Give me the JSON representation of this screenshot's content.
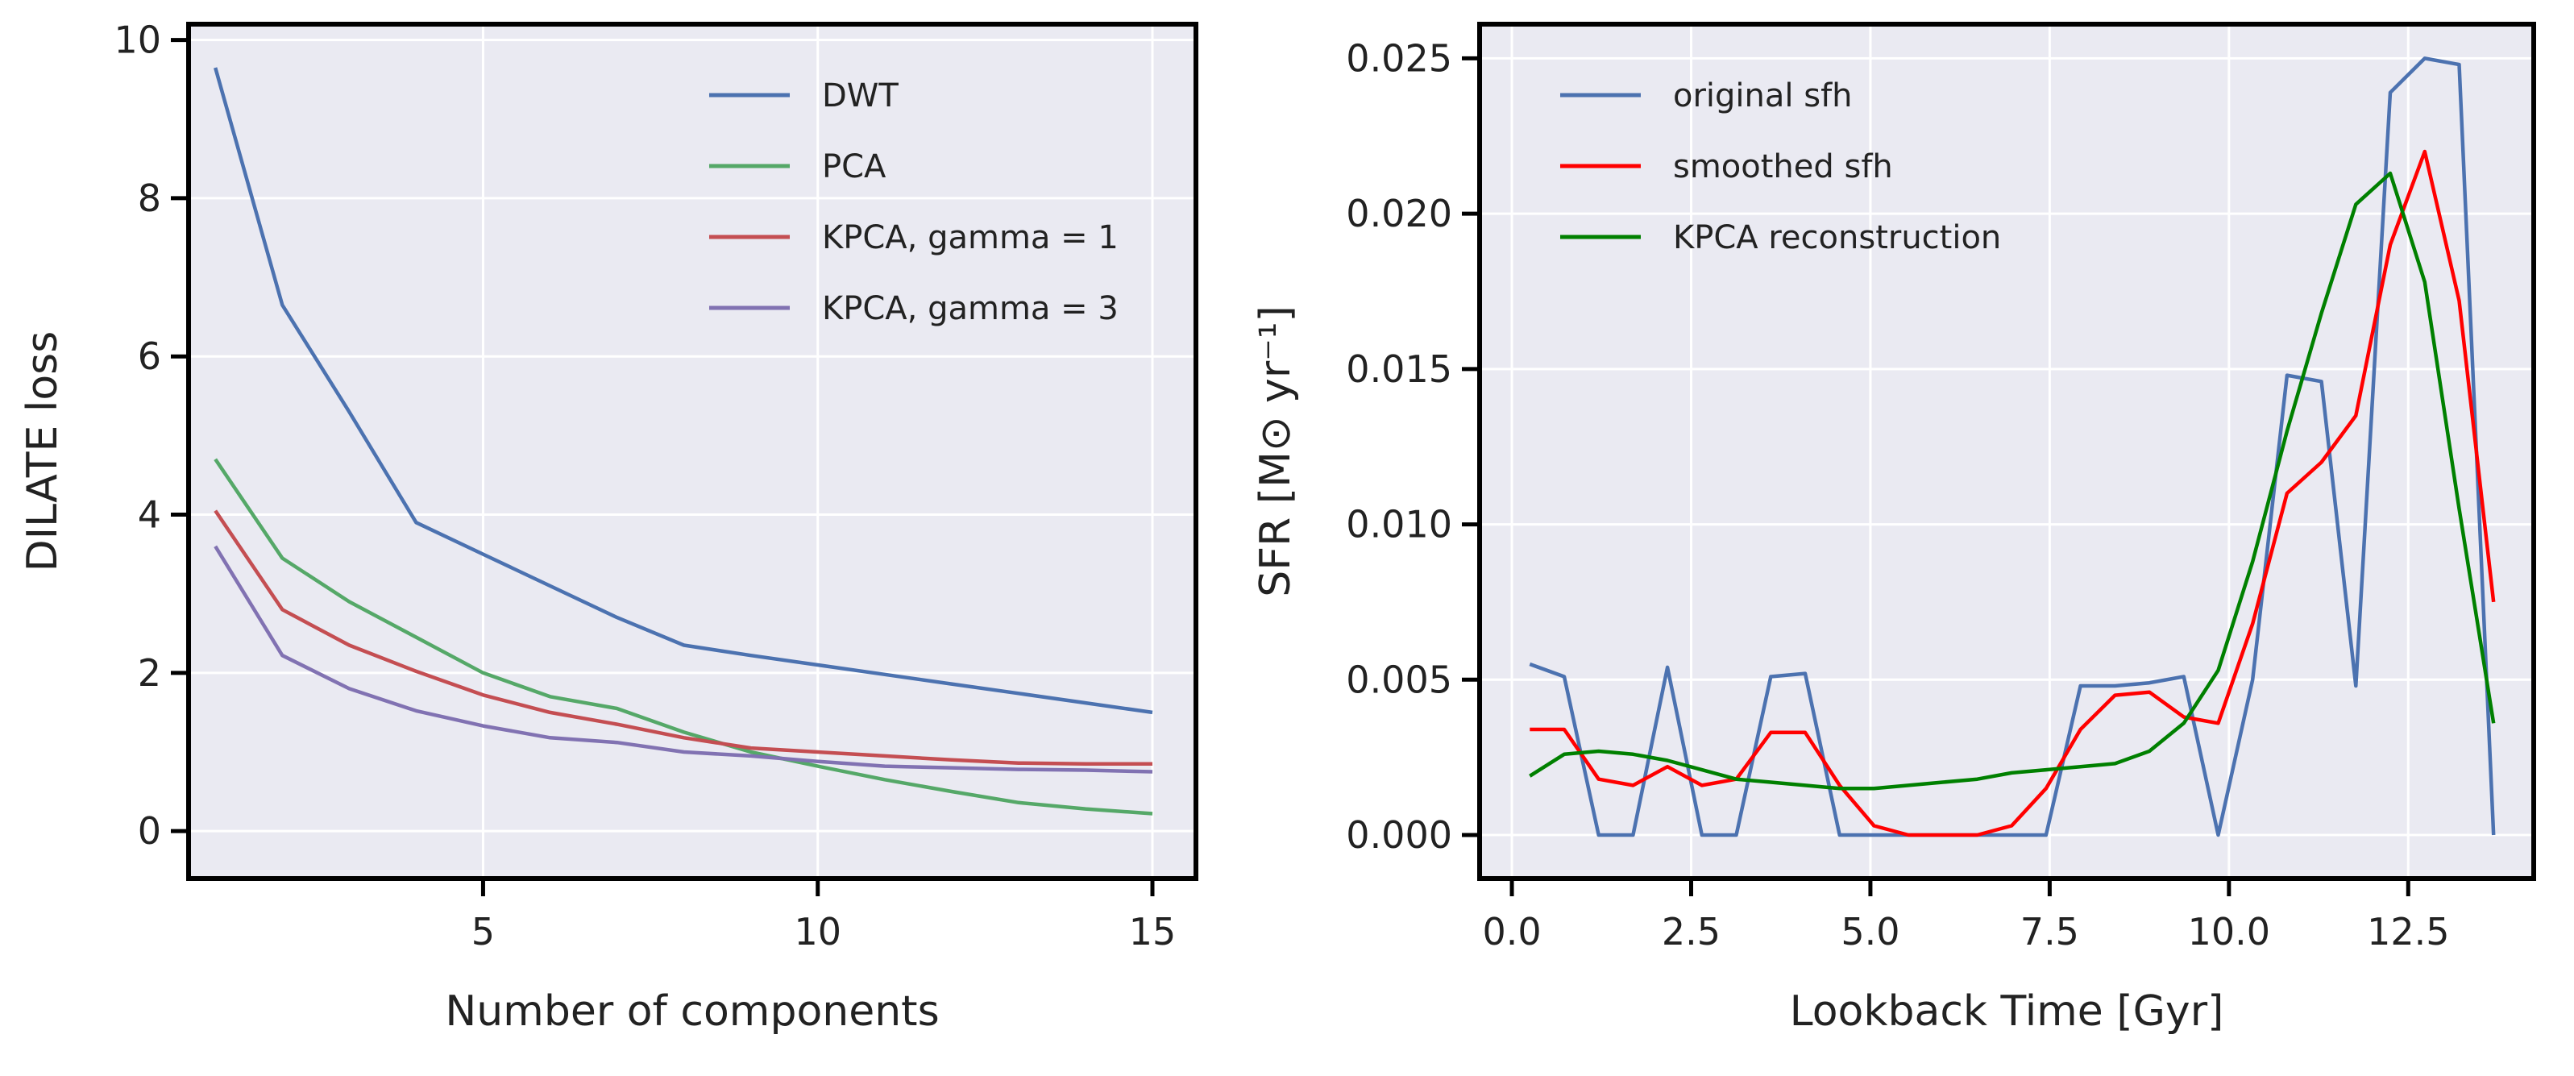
{
  "chart_data": [
    {
      "type": "line",
      "title": "",
      "xlabel": "Number of components",
      "ylabel": "DILATE loss",
      "xlim": [
        0.6,
        15.65
      ],
      "ylim": [
        -0.6,
        10.2
      ],
      "xticks": [
        5,
        10,
        15
      ],
      "yticks": [
        0,
        2,
        4,
        6,
        8,
        10
      ],
      "grid": true,
      "legend_position": "top-right",
      "x": [
        1,
        2,
        3,
        4,
        5,
        6,
        7,
        8,
        9,
        10,
        11,
        12,
        13,
        14,
        15
      ],
      "series": [
        {
          "name": "DWT",
          "color": "#4c72b0",
          "values": [
            9.65,
            6.65,
            5.3,
            3.9,
            3.5,
            3.1,
            2.7,
            2.35,
            2.22,
            2.1,
            1.98,
            1.86,
            1.74,
            1.62,
            1.5
          ]
        },
        {
          "name": "PCA",
          "color": "#55a868",
          "values": [
            4.7,
            3.45,
            2.9,
            2.45,
            2.0,
            1.7,
            1.55,
            1.25,
            1.0,
            0.82,
            0.65,
            0.5,
            0.36,
            0.28,
            0.22
          ]
        },
        {
          "name": "KPCA, gamma = 1",
          "color": "#c44e52",
          "values": [
            4.05,
            2.8,
            2.35,
            2.02,
            1.72,
            1.5,
            1.35,
            1.18,
            1.05,
            1.0,
            0.95,
            0.9,
            0.86,
            0.85,
            0.85
          ]
        },
        {
          "name": "KPCA, gamma = 3",
          "color": "#8172b2",
          "values": [
            3.6,
            2.22,
            1.8,
            1.52,
            1.33,
            1.18,
            1.12,
            1.0,
            0.95,
            0.88,
            0.82,
            0.8,
            0.78,
            0.77,
            0.75
          ]
        }
      ]
    },
    {
      "type": "line",
      "title": "",
      "xlabel": "Lookback Time [Gyr]",
      "ylabel": "SFR [M⊙ yr⁻¹]",
      "xlim": [
        -0.45,
        14.25
      ],
      "ylim": [
        -0.0014,
        0.0261
      ],
      "xticks": [
        "0.0",
        "2.5",
        "5.0",
        "7.5",
        "10.0",
        "12.5"
      ],
      "yticks": [
        "0.000",
        "0.005",
        "0.010",
        "0.015",
        "0.020",
        "0.025"
      ],
      "grid": true,
      "legend_position": "top-left",
      "x": [
        0.25,
        0.73,
        1.21,
        1.69,
        2.17,
        2.65,
        3.13,
        3.61,
        4.09,
        4.57,
        5.05,
        5.53,
        6.01,
        6.49,
        6.97,
        7.45,
        7.93,
        8.41,
        8.89,
        9.37,
        9.85,
        10.33,
        10.81,
        11.29,
        11.77,
        12.25,
        12.73,
        13.21,
        13.69
      ],
      "series": [
        {
          "name": "original sfh",
          "color": "#4c72b0",
          "values": [
            0.0055,
            0.0051,
            0,
            0,
            0.0054,
            0,
            0,
            0.0051,
            0.0052,
            0,
            0,
            0,
            0,
            0,
            0,
            0,
            0.0048,
            0.0048,
            0.0049,
            0.0051,
            0,
            0.005,
            0.0148,
            0.0146,
            0.0048,
            0.0239,
            0.025,
            0.0248,
            0
          ]
        },
        {
          "name": "smoothed sfh",
          "color": "#ff0000",
          "values": [
            0.0034,
            0.0034,
            0.0018,
            0.0016,
            0.0022,
            0.0016,
            0.0018,
            0.0033,
            0.0033,
            0.0016,
            0.0003,
            0,
            0,
            0,
            0.0003,
            0.0015,
            0.0034,
            0.0045,
            0.0046,
            0.0038,
            0.0036,
            0.0068,
            0.011,
            0.012,
            0.0135,
            0.019,
            0.022,
            0.0172,
            0.0075
          ]
        },
        {
          "name": "KPCA reconstruction",
          "color": "#008000",
          "values": [
            0.0019,
            0.0026,
            0.0027,
            0.0026,
            0.0024,
            0.0021,
            0.0018,
            0.0017,
            0.0016,
            0.0015,
            0.0015,
            0.0016,
            0.0017,
            0.0018,
            0.002,
            0.0021,
            0.0022,
            0.0023,
            0.0027,
            0.0036,
            0.0053,
            0.0088,
            0.013,
            0.0168,
            0.0203,
            0.0213,
            0.0178,
            0.0105,
            0.0036
          ]
        }
      ]
    }
  ]
}
